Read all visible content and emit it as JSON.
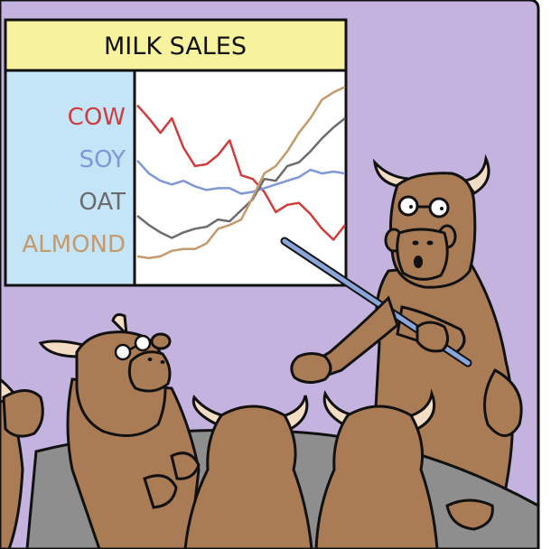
{
  "comic": {
    "board_title": "MILK SALES",
    "colors": {
      "wall": "#c3b3de",
      "title_bar": "#f7f29e",
      "legend_panel": "#c4e5f8",
      "chart_bg": "#ffffff",
      "cow_fur": "#a97c55",
      "horn": "#f3ddc4",
      "table": "#8e8e8e"
    }
  },
  "chart_data": {
    "type": "line",
    "title": "MILK SALES",
    "xlabel": "",
    "ylabel": "",
    "x": [
      1,
      2,
      3,
      4,
      5,
      6,
      7,
      8,
      9,
      10,
      11,
      12,
      13,
      14,
      15,
      16,
      17,
      18,
      19
    ],
    "ylim": [
      0,
      100
    ],
    "grid": false,
    "legend_position": "left",
    "series": [
      {
        "name": "COW",
        "color": "#d23b3b",
        "values": [
          85,
          78,
          70,
          78,
          62,
          52,
          53,
          58,
          66,
          47,
          45,
          38,
          27,
          31,
          32,
          26,
          18,
          12,
          20
        ]
      },
      {
        "name": "SOY",
        "color": "#7f97d6",
        "values": [
          55,
          48,
          44,
          42,
          44,
          41,
          39,
          40,
          40,
          37,
          38,
          40,
          42,
          44,
          46,
          50,
          48,
          49,
          48
        ]
      },
      {
        "name": "OAT",
        "color": "#6c6c6c",
        "values": [
          25,
          20,
          16,
          13,
          16,
          18,
          19,
          23,
          22,
          28,
          34,
          45,
          44,
          52,
          54,
          60,
          67,
          73,
          78
        ]
      },
      {
        "name": "ALMOND",
        "color": "#c49a6c",
        "values": [
          3,
          2,
          3,
          6,
          7,
          7,
          10,
          18,
          20,
          23,
          35,
          48,
          52,
          60,
          70,
          78,
          88,
          92,
          95
        ]
      }
    ]
  }
}
